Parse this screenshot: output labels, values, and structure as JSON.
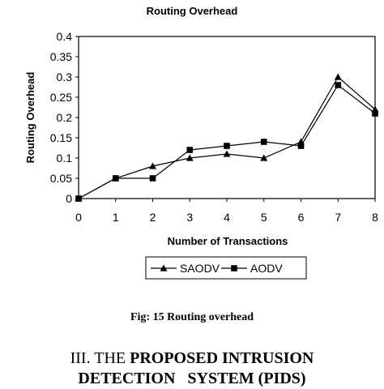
{
  "chart_data": {
    "type": "line",
    "title": "Routing Overhead",
    "xlabel": "Number of Transactions",
    "ylabel": "Routing Overhead",
    "xlim": [
      0,
      8
    ],
    "ylim": [
      0,
      0.4
    ],
    "x_ticks": [
      "0",
      "1",
      "2",
      "3",
      "4",
      "5",
      "6",
      "7",
      "8"
    ],
    "y_ticks": [
      "0",
      "0.05",
      "0.1",
      "0.15",
      "0.2",
      "0.25",
      "0.3",
      "0.35",
      "0.4"
    ],
    "x": [
      0,
      1,
      2,
      3,
      4,
      5,
      6,
      7,
      8
    ],
    "series": [
      {
        "name": "SAODV",
        "marker": "triangle",
        "values": [
          0,
          0.05,
          0.08,
          0.1,
          0.11,
          0.1,
          0.14,
          0.3,
          0.22
        ]
      },
      {
        "name": "AODV",
        "marker": "square",
        "values": [
          0,
          0.05,
          0.05,
          0.12,
          0.13,
          0.14,
          0.13,
          0.28,
          0.21
        ]
      }
    ],
    "grid": false,
    "legend_position": "bottom",
    "line_color": "#000000"
  },
  "caption": "Fig: 15 Routing overhead",
  "section_heading": {
    "line1_prefix": "III. THE ",
    "line1_bold": "PROPOSED INTRUSION",
    "line2_bold": "DETECTION   SYSTEM (PIDS)"
  }
}
